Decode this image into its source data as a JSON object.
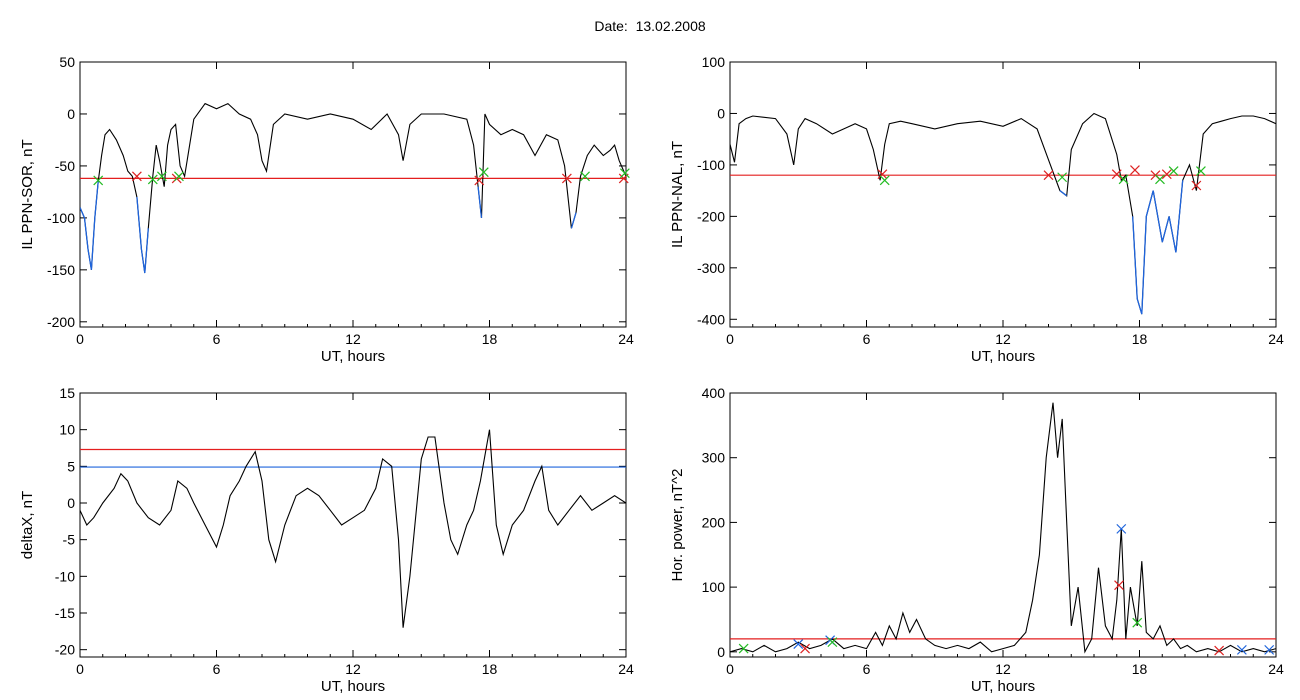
{
  "header": {
    "date_label": "Date:",
    "date_value": "13.02.2008"
  },
  "colors": {
    "trace": "#000000",
    "threshold_red": "#e41e1e",
    "threshold_blue": "#1e64dc",
    "marker_green": "#22bb22",
    "marker_red": "#dd2222",
    "marker_blue": "#1e64dc",
    "disturbed_trace": "#1e64dc"
  },
  "chart_data": [
    {
      "type": "line",
      "title": "",
      "xlabel": "UT, hours",
      "ylabel": "IL PPN-SOR, nT",
      "xlim": [
        0,
        24
      ],
      "ylim": [
        -205,
        50
      ],
      "xticks": [
        0,
        6,
        12,
        18,
        24
      ],
      "yticks": [
        50,
        0,
        -50,
        -100,
        -150,
        -200
      ],
      "grid": false,
      "thresholds": [
        {
          "y": -62,
          "color": "red"
        }
      ],
      "series": [
        {
          "x": [
            0,
            0.2,
            0.35,
            0.5,
            0.65,
            0.8,
            0.95,
            1.1,
            1.3,
            1.6,
            1.9,
            2.1,
            2.3,
            2.5,
            2.7,
            2.85,
            3.0,
            3.2,
            3.35,
            3.5,
            3.7,
            3.85,
            4.0,
            4.2,
            4.4,
            4.6,
            5.0,
            5.5,
            6.0,
            6.5,
            7.0,
            7.5,
            7.8,
            8.0,
            8.2,
            8.5,
            9.0,
            10.0,
            11.0,
            12.0,
            12.8,
            13.5,
            14.0,
            14.2,
            14.5,
            15.0,
            16.0,
            17.0,
            17.3,
            17.5,
            17.65,
            17.8,
            18.0,
            18.5,
            19.0,
            19.5,
            20.0,
            20.5,
            21.0,
            21.3,
            21.6,
            21.8,
            22.0,
            22.3,
            22.6,
            23.0,
            23.3,
            23.5,
            23.7,
            24.0
          ],
          "y": [
            -90,
            -100,
            -130,
            -150,
            -100,
            -65,
            -40,
            -20,
            -15,
            -25,
            -40,
            -55,
            -60,
            -80,
            -130,
            -153,
            -110,
            -60,
            -30,
            -45,
            -70,
            -30,
            -15,
            -10,
            -50,
            -60,
            -5,
            10,
            5,
            10,
            0,
            -5,
            -20,
            -45,
            -55,
            -10,
            0,
            -5,
            0,
            -5,
            -15,
            0,
            -20,
            -45,
            -10,
            0,
            0,
            -5,
            -30,
            -70,
            -100,
            0,
            -10,
            -20,
            -15,
            -20,
            -40,
            -20,
            -25,
            -50,
            -110,
            -95,
            -60,
            -40,
            -30,
            -40,
            -35,
            -30,
            -45,
            -60
          ]
        }
      ],
      "markers": [
        {
          "x": 0.8,
          "y": -64,
          "color": "green"
        },
        {
          "x": 2.5,
          "y": -60,
          "color": "red"
        },
        {
          "x": 3.2,
          "y": -63,
          "color": "green"
        },
        {
          "x": 3.6,
          "y": -60,
          "color": "green"
        },
        {
          "x": 4.25,
          "y": -62,
          "color": "red"
        },
        {
          "x": 4.35,
          "y": -60,
          "color": "green"
        },
        {
          "x": 17.55,
          "y": -64,
          "color": "red"
        },
        {
          "x": 17.75,
          "y": -56,
          "color": "green"
        },
        {
          "x": 21.4,
          "y": -62,
          "color": "red"
        },
        {
          "x": 22.2,
          "y": -60,
          "color": "green"
        },
        {
          "x": 23.9,
          "y": -62,
          "color": "red"
        },
        {
          "x": 23.95,
          "y": -57,
          "color": "green"
        }
      ]
    },
    {
      "type": "line",
      "title": "",
      "xlabel": "UT, hours",
      "ylabel": "IL PPN-NAL, nT",
      "xlim": [
        0,
        24
      ],
      "ylim": [
        -415,
        100
      ],
      "xticks": [
        0,
        6,
        12,
        18,
        24
      ],
      "yticks": [
        100,
        0,
        -100,
        -200,
        -300,
        -400
      ],
      "grid": false,
      "thresholds": [
        {
          "y": -120,
          "color": "red"
        }
      ],
      "series": [
        {
          "x": [
            0,
            0.2,
            0.4,
            0.7,
            1.0,
            2.0,
            2.5,
            2.8,
            3.0,
            3.3,
            3.8,
            4.5,
            5.0,
            5.5,
            6.0,
            6.3,
            6.6,
            6.8,
            7.0,
            7.5,
            8.0,
            9.0,
            10.0,
            11.0,
            12.0,
            12.8,
            13.5,
            14.0,
            14.5,
            14.8,
            15.0,
            15.5,
            16.0,
            16.5,
            17.0,
            17.2,
            17.4,
            17.7,
            17.9,
            18.1,
            18.3,
            18.6,
            19.0,
            19.3,
            19.6,
            19.9,
            20.2,
            20.5,
            20.8,
            21.2,
            21.6,
            22.0,
            22.5,
            23.0,
            23.5,
            24.0
          ],
          "y": [
            -60,
            -95,
            -20,
            -10,
            -5,
            -10,
            -40,
            -100,
            -30,
            -10,
            -20,
            -40,
            -30,
            -20,
            -30,
            -70,
            -130,
            -60,
            -20,
            -15,
            -20,
            -30,
            -20,
            -15,
            -25,
            -10,
            -30,
            -90,
            -150,
            -160,
            -70,
            -20,
            0,
            -10,
            -80,
            -130,
            -120,
            -200,
            -360,
            -390,
            -200,
            -150,
            -250,
            -200,
            -270,
            -130,
            -100,
            -150,
            -40,
            -20,
            -15,
            -10,
            -5,
            -5,
            -10,
            -20
          ]
        }
      ],
      "markers": [
        {
          "x": 6.7,
          "y": -118,
          "color": "red"
        },
        {
          "x": 6.8,
          "y": -130,
          "color": "green"
        },
        {
          "x": 14.0,
          "y": -120,
          "color": "red"
        },
        {
          "x": 14.6,
          "y": -124,
          "color": "green"
        },
        {
          "x": 17.0,
          "y": -118,
          "color": "red"
        },
        {
          "x": 17.3,
          "y": -128,
          "color": "green"
        },
        {
          "x": 17.8,
          "y": -110,
          "color": "red"
        },
        {
          "x": 18.7,
          "y": -120,
          "color": "red"
        },
        {
          "x": 18.9,
          "y": -128,
          "color": "green"
        },
        {
          "x": 19.2,
          "y": -118,
          "color": "red"
        },
        {
          "x": 19.5,
          "y": -112,
          "color": "green"
        },
        {
          "x": 20.5,
          "y": -140,
          "color": "red"
        },
        {
          "x": 20.7,
          "y": -112,
          "color": "green"
        }
      ]
    },
    {
      "type": "line",
      "title": "",
      "xlabel": "UT, hours",
      "ylabel": "deltaX, nT",
      "xlim": [
        0,
        24
      ],
      "ylim": [
        -21,
        15
      ],
      "xticks": [
        0,
        6,
        12,
        18,
        24
      ],
      "yticks": [
        15,
        10,
        5,
        0,
        -5,
        -10,
        -15,
        -20
      ],
      "grid": false,
      "thresholds": [
        {
          "y": 7.3,
          "color": "red"
        },
        {
          "y": 4.9,
          "color": "blue"
        }
      ],
      "series": [
        {
          "x": [
            0,
            0.3,
            0.6,
            1.0,
            1.5,
            1.8,
            2.1,
            2.5,
            3.0,
            3.5,
            4.0,
            4.3,
            4.7,
            5.0,
            5.5,
            6.0,
            6.3,
            6.6,
            7.0,
            7.3,
            7.7,
            8.0,
            8.3,
            8.6,
            9.0,
            9.5,
            10.0,
            10.5,
            11.0,
            11.5,
            12.0,
            12.5,
            13.0,
            13.3,
            13.7,
            14.0,
            14.2,
            14.5,
            15.0,
            15.3,
            15.6,
            16.0,
            16.3,
            16.6,
            17.0,
            17.3,
            17.6,
            18.0,
            18.3,
            18.6,
            19.0,
            19.5,
            20.0,
            20.3,
            20.6,
            21.0,
            21.5,
            22.0,
            22.5,
            23.0,
            23.5,
            24.0
          ],
          "y": [
            -1,
            -3,
            -2,
            0,
            2,
            4,
            3,
            0,
            -2,
            -3,
            -1,
            3,
            2,
            0,
            -3,
            -6,
            -3,
            1,
            3,
            5,
            7,
            3,
            -5,
            -8,
            -3,
            1,
            2,
            1,
            -1,
            -3,
            -2,
            -1,
            2,
            6,
            5,
            -5,
            -17,
            -10,
            6,
            9,
            9,
            0,
            -5,
            -7,
            -3,
            -1,
            3,
            10,
            -3,
            -7,
            -3,
            -1,
            3,
            5,
            -1,
            -3,
            -1,
            1,
            -1,
            0,
            1,
            0
          ]
        }
      ],
      "markers": []
    },
    {
      "type": "line",
      "title": "",
      "xlabel": "UT, hours",
      "ylabel": "Hor. power, nT^2",
      "xlim": [
        0,
        24
      ],
      "ylim": [
        -8,
        400
      ],
      "xticks": [
        0,
        6,
        12,
        18,
        24
      ],
      "yticks": [
        400,
        300,
        200,
        100,
        0
      ],
      "grid": false,
      "thresholds": [
        {
          "y": 20,
          "color": "red"
        }
      ],
      "series": [
        {
          "x": [
            0,
            0.5,
            1.0,
            1.5,
            2.0,
            2.5,
            3.0,
            3.5,
            4.0,
            4.5,
            5.0,
            5.5,
            6.0,
            6.4,
            6.7,
            7.0,
            7.3,
            7.6,
            7.9,
            8.2,
            8.6,
            9.0,
            9.5,
            10.0,
            10.5,
            11.0,
            11.5,
            12.0,
            12.5,
            13.0,
            13.3,
            13.6,
            13.9,
            14.2,
            14.4,
            14.6,
            14.8,
            15.0,
            15.3,
            15.6,
            15.9,
            16.2,
            16.5,
            16.8,
            17.0,
            17.2,
            17.4,
            17.6,
            17.9,
            18.1,
            18.3,
            18.6,
            18.9,
            19.2,
            19.5,
            19.8,
            20.1,
            20.5,
            21.0,
            21.5,
            22.0,
            22.5,
            23.0,
            23.5,
            24.0
          ],
          "y": [
            0,
            5,
            0,
            10,
            0,
            5,
            15,
            5,
            10,
            20,
            5,
            10,
            5,
            30,
            10,
            40,
            20,
            60,
            30,
            50,
            20,
            10,
            5,
            10,
            5,
            15,
            0,
            5,
            10,
            30,
            80,
            150,
            300,
            385,
            300,
            360,
            200,
            40,
            100,
            0,
            20,
            130,
            40,
            20,
            80,
            190,
            20,
            100,
            40,
            140,
            30,
            20,
            40,
            10,
            20,
            5,
            10,
            0,
            5,
            0,
            10,
            0,
            5,
            0,
            5
          ]
        }
      ],
      "markers": [
        {
          "x": 0.6,
          "y": 5,
          "color": "green"
        },
        {
          "x": 3.0,
          "y": 12,
          "color": "blue"
        },
        {
          "x": 3.3,
          "y": 5,
          "color": "red"
        },
        {
          "x": 4.4,
          "y": 18,
          "color": "blue"
        },
        {
          "x": 4.5,
          "y": 15,
          "color": "green"
        },
        {
          "x": 17.2,
          "y": 190,
          "color": "blue"
        },
        {
          "x": 17.1,
          "y": 103,
          "color": "red"
        },
        {
          "x": 17.9,
          "y": 45,
          "color": "green"
        },
        {
          "x": 21.5,
          "y": 2,
          "color": "red"
        },
        {
          "x": 22.5,
          "y": 3,
          "color": "blue"
        },
        {
          "x": 23.7,
          "y": 3,
          "color": "blue"
        }
      ]
    }
  ]
}
